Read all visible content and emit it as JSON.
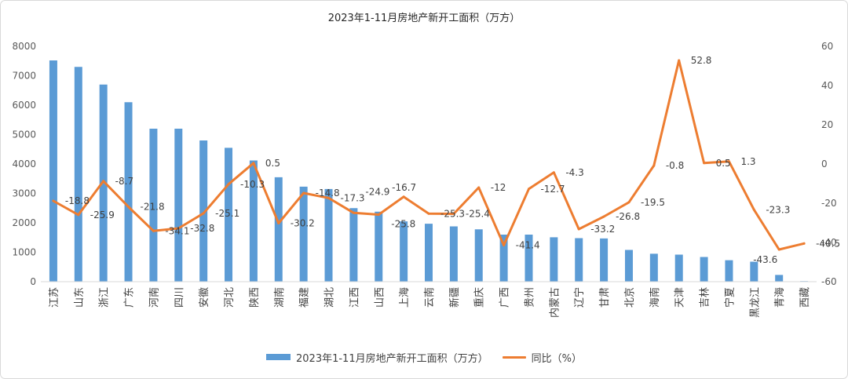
{
  "chart_data": {
    "type": "bar",
    "title": "2023年1-11月房地产新开工面积（万方）",
    "categories": [
      "江苏",
      "山东",
      "浙江",
      "广东",
      "河南",
      "四川",
      "安徽",
      "河北",
      "陕西",
      "湖南",
      "福建",
      "湖北",
      "江西",
      "山西",
      "上海",
      "云南",
      "新疆",
      "重庆",
      "广西",
      "贵州",
      "内蒙古",
      "辽宁",
      "甘肃",
      "北京",
      "海南",
      "天津",
      "吉林",
      "宁夏",
      "黑龙江",
      "青海",
      "西藏"
    ],
    "series": [
      {
        "name": "2023年1-11月房地产新开工面积（万方）",
        "type": "bar",
        "axis": "left",
        "color": "#5B9BD5",
        "values": [
          7520,
          7300,
          6700,
          6100,
          5200,
          5200,
          4800,
          4550,
          4120,
          3550,
          3230,
          3150,
          2500,
          2380,
          2050,
          1970,
          1880,
          1780,
          1600,
          1600,
          1510,
          1480,
          1470,
          1080,
          950,
          920,
          840,
          730,
          680,
          230,
          20
        ]
      },
      {
        "name": "同比（%）",
        "type": "line",
        "axis": "right",
        "color": "#ED7D31",
        "data_labels": true,
        "values": [
          -18.8,
          -25.9,
          -8.7,
          -21.8,
          -34.1,
          -32.8,
          -25.1,
          -10.3,
          0.5,
          -30.2,
          -14.8,
          -17.3,
          -24.9,
          -25.8,
          -16.7,
          -25.3,
          -25.4,
          -12,
          -41.4,
          -12.7,
          -4.3,
          -33.2,
          -26.8,
          -19.5,
          -0.8,
          52.8,
          0.5,
          1.3,
          -23.3,
          -43.6,
          -40.5
        ]
      }
    ],
    "ylim": [
      0,
      8000
    ],
    "yticks": [
      0,
      1000,
      2000,
      3000,
      4000,
      5000,
      6000,
      7000,
      8000
    ],
    "y2lim": [
      -60,
      60
    ],
    "y2ticks": [
      -60,
      -40,
      -20,
      0,
      20,
      40,
      60
    ],
    "grid": false,
    "legend": "bottom"
  }
}
